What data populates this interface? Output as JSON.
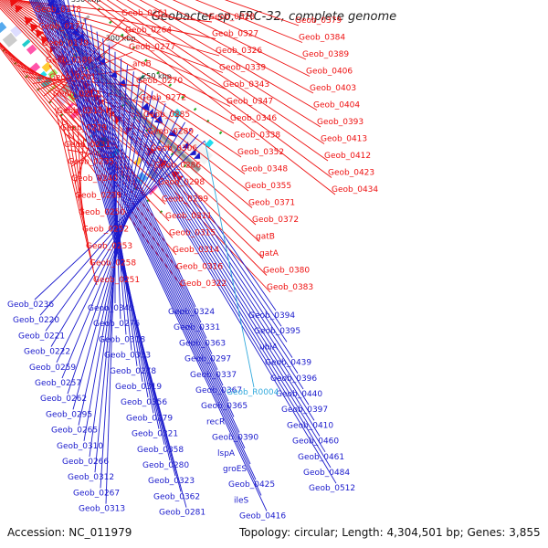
{
  "title": "Geobacter sp. FRC-32, complete genome",
  "footer": {
    "accession": "Accession: NC_011979",
    "summary": "Topology: circular; Length: 4,304,501 bp; Genes: 3,855"
  },
  "colors": {
    "forward_strand": "#ee1111",
    "reverse_strand": "#1a1acc",
    "highlight": "#33aadd",
    "backbone": "#888888"
  },
  "scale_ticks": [
    "250 kbp",
    "300 kbp",
    "350 kbp",
    "400 kbp",
    "450 kbp",
    "500 kbp",
    "550 kbp"
  ],
  "forward_labels": [
    "Geob_0178",
    "Geob_0177",
    "Geob_0179",
    "Geob_0189",
    "Geob_0201",
    "Geob_0212",
    "Geob_0215",
    "Geob_0219",
    "Geob_0231",
    "Geob_0235",
    "Geob_0240",
    "Geob_0239",
    "Geob_0250",
    "Geob_0252",
    "Geob_0253",
    "Geob_0258",
    "Geob_0251",
    "Geob_0261",
    "Geob_0264",
    "Geob_0277",
    "aroB",
    "Geob_0270",
    "Geob_0272",
    "Geob_0285",
    "Geob_0289",
    "Geob_0306",
    "Geob_0286",
    "Geob_0298",
    "Geob_0299",
    "Geob_0311",
    "Geob_0315",
    "Geob_0314",
    "Geob_0316",
    "Geob_0322",
    "Geob_0328",
    "Geob_0327",
    "Geob_0326",
    "Geob_0339",
    "Geob_0343",
    "Geob_0347",
    "Geob_0346",
    "Geob_0338",
    "Geob_0352",
    "Geob_0348",
    "Geob_0355",
    "Geob_0371",
    "Geob_0372",
    "gatB",
    "gatA",
    "Geob_0380",
    "Geob_0383",
    "Geob_0379",
    "Geob_0384",
    "Geob_0389",
    "Geob_0406",
    "Geob_0403",
    "Geob_0404",
    "Geob_0393",
    "Geob_0413",
    "Geob_0412",
    "Geob_0423",
    "Geob_0434"
  ],
  "reverse_labels": [
    "Geob_0236",
    "Geob_0220",
    "Geob_0221",
    "Geob_0222",
    "Geob_0259",
    "Geob_0257",
    "Geob_0262",
    "Geob_0295",
    "Geob_0265",
    "Geob_0310",
    "Geob_0266",
    "Geob_0312",
    "Geob_0267",
    "Geob_0313",
    "Geob_0349",
    "Geob_0276",
    "Geob_0318",
    "Geob_0353",
    "Geob_0278",
    "Geob_0319",
    "Geob_0356",
    "Geob_0279",
    "Geob_0321",
    "Geob_0358",
    "Geob_0280",
    "Geob_0323",
    "Geob_0362",
    "Geob_0281",
    "Geob_0324",
    "Geob_0331",
    "Geob_0363",
    "Geob_0297",
    "Geob_0337",
    "Geob_0367",
    "Geob_0365",
    "recR",
    "Geob_0390",
    "lspA",
    "groES",
    "Geob_0425",
    "ileS",
    "Geob_0416",
    "Geob_0394",
    "Geob_0395",
    "ubiA",
    "Geob_0439",
    "Geob_0396",
    "Geob_0440",
    "Geob_0397",
    "Geob_0410",
    "Geob_0460",
    "Geob_0461",
    "Geob_0484",
    "Geob_0512"
  ],
  "highlight_labels": [
    "Geob_R0004"
  ]
}
